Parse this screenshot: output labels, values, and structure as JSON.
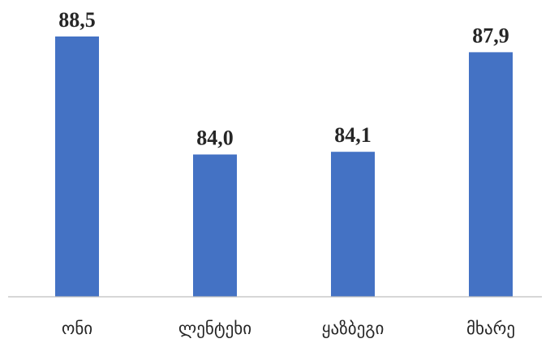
{
  "chart_data": {
    "type": "bar",
    "categories": [
      "ონი",
      "ლენტეხი",
      "ყაზბეგი",
      "მხარე"
    ],
    "values": [
      88.5,
      84.0,
      84.1,
      87.9
    ],
    "value_labels": [
      "88,5",
      "84,0",
      "84,1",
      "87,9"
    ],
    "title": "",
    "xlabel": "",
    "ylabel": "",
    "ylim": [
      78.57,
      88.5
    ],
    "grid": false,
    "legend": "none",
    "bar_color": "#4472C4",
    "axis_color": "#BFBFBF"
  }
}
